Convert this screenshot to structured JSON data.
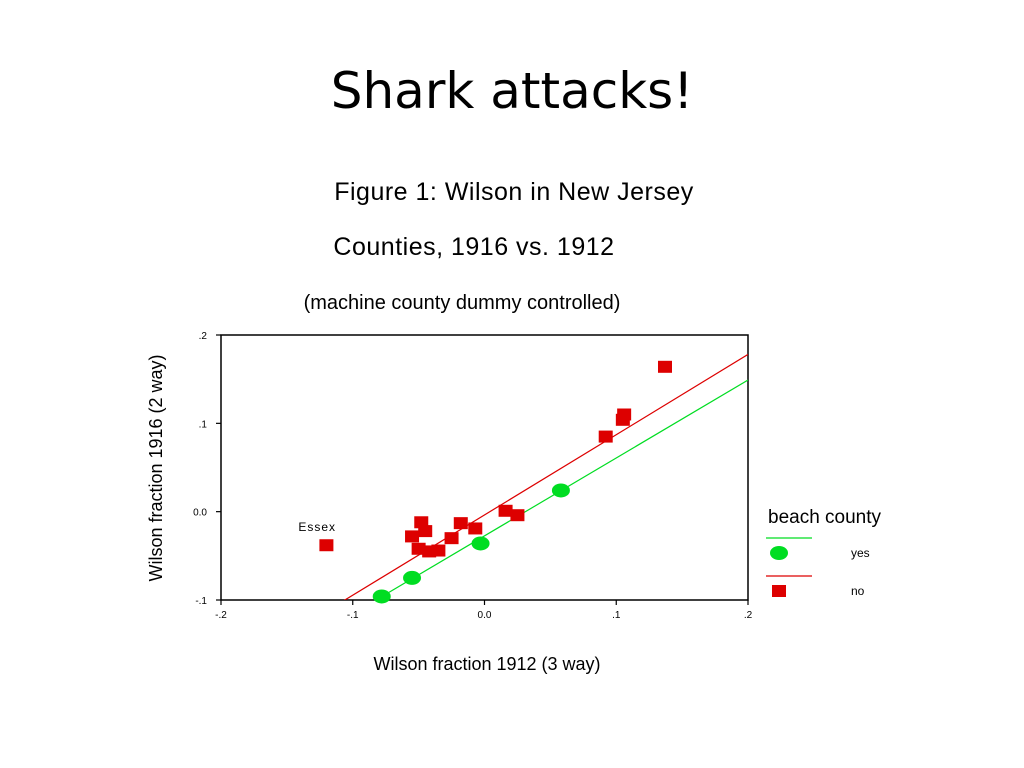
{
  "slide": {
    "title": "Shark attacks!"
  },
  "figure": {
    "title": "Figure 1: Wilson in New Jersey",
    "subtitle": "Counties, 1916 vs. 1912",
    "note": "(machine county dummy controlled)"
  },
  "chart_data": {
    "type": "scatter",
    "xlabel": "Wilson fraction 1912 (3 way)",
    "ylabel": "Wilson fraction 1916 (2 way)",
    "xlim": [
      -0.2,
      0.2
    ],
    "ylim": [
      -0.1,
      0.2
    ],
    "xticks": [
      -0.2,
      -0.1,
      0.0,
      0.1,
      0.2
    ],
    "xtick_labels": [
      "-.2",
      "-.1",
      "0.0",
      ".1",
      ".2"
    ],
    "yticks": [
      -0.1,
      0.0,
      0.1,
      0.2
    ],
    "ytick_labels": [
      "-.1",
      "0.0",
      ".1",
      ".2"
    ],
    "grid": false,
    "legend": {
      "title": "beach county",
      "placement": "right",
      "entries": [
        {
          "label": "yes",
          "color": "#00dd22",
          "marker": "circle"
        },
        {
          "label": "no",
          "color": "#dd0000",
          "marker": "square"
        }
      ]
    },
    "series": [
      {
        "name": "yes",
        "color": "#00dd22",
        "marker": "circle",
        "points": [
          {
            "x": -0.078,
            "y": -0.096
          },
          {
            "x": -0.055,
            "y": -0.075
          },
          {
            "x": -0.003,
            "y": -0.036
          },
          {
            "x": 0.058,
            "y": 0.024
          }
        ],
        "fit_line": [
          [
            -0.105,
            -0.12
          ],
          [
            0.2,
            0.149
          ]
        ]
      },
      {
        "name": "no",
        "color": "#dd0000",
        "marker": "square",
        "points": [
          {
            "x": -0.12,
            "y": -0.038
          },
          {
            "x": -0.055,
            "y": -0.028
          },
          {
            "x": -0.05,
            "y": -0.042
          },
          {
            "x": -0.048,
            "y": -0.012
          },
          {
            "x": -0.045,
            "y": -0.022
          },
          {
            "x": -0.042,
            "y": -0.045
          },
          {
            "x": -0.035,
            "y": -0.044
          },
          {
            "x": -0.025,
            "y": -0.03
          },
          {
            "x": -0.018,
            "y": -0.013
          },
          {
            "x": -0.007,
            "y": -0.019
          },
          {
            "x": 0.016,
            "y": 0.001
          },
          {
            "x": 0.025,
            "y": -0.004
          },
          {
            "x": 0.092,
            "y": 0.085
          },
          {
            "x": 0.105,
            "y": 0.104
          },
          {
            "x": 0.106,
            "y": 0.11
          },
          {
            "x": 0.137,
            "y": 0.164
          }
        ],
        "fit_line": [
          [
            -0.128,
            -0.12
          ],
          [
            0.2,
            0.178
          ]
        ]
      }
    ],
    "annotations": [
      {
        "text": "Essex",
        "x": -0.127,
        "y": -0.022
      }
    ]
  }
}
